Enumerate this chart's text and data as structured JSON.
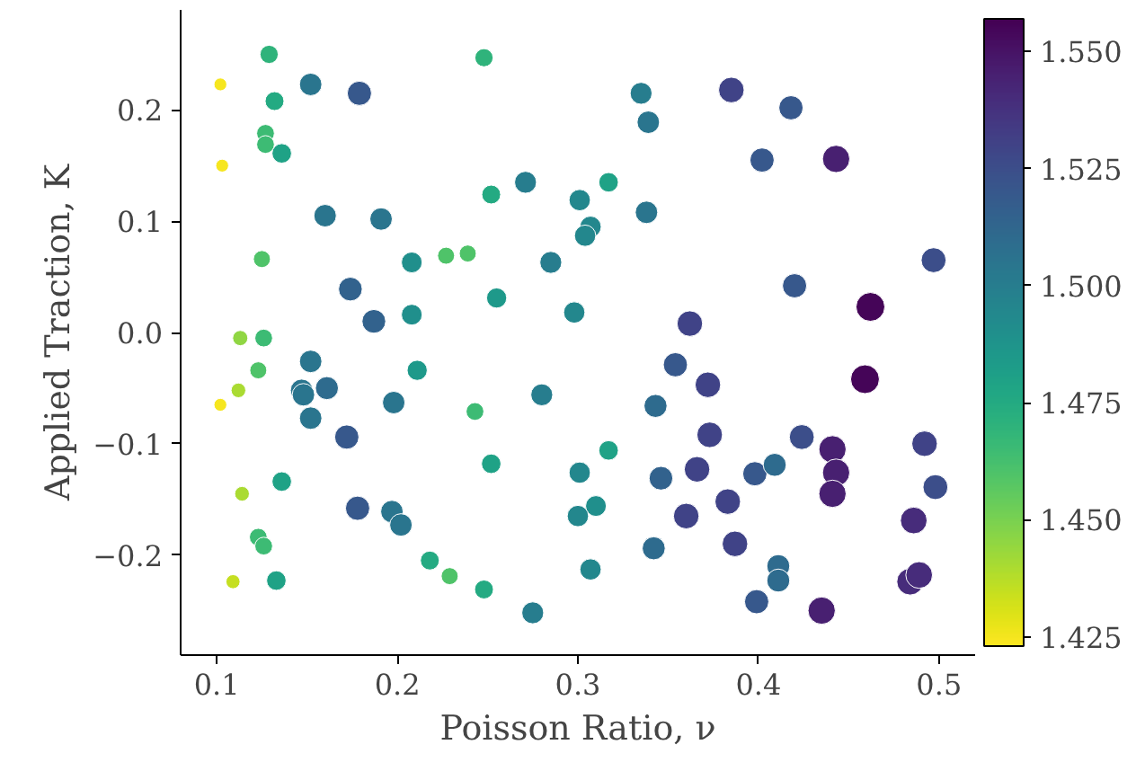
{
  "chart_data": {
    "type": "bubble",
    "sizes": [
      0.4,
      0.4,
      0.2,
      0.61,
      0.71,
      0.43,
      0.38,
      0.38,
      0.46,
      0.2,
      0.58,
      0.43,
      0.61,
      0.61,
      0.35,
      0.52,
      0.35,
      0.35,
      0.58,
      0.68,
      0.49,
      0.68,
      0.52,
      0.28,
      0.38,
      0.58,
      0.79,
      0.71,
      0.61,
      0.71,
      0.9,
      0.46,
      0.55,
      0.55,
      0.55,
      0.61,
      0.75,
      0.71,
      0.55,
      1.0,
      0.79,
      0.71,
      0.79,
      1.0,
      0.64,
      0.79,
      0.75,
      0.9,
      0.9,
      0.9,
      0.79,
      0.75,
      0.46,
      0.55,
      0.68,
      0.79,
      0.71,
      0.64,
      0.52,
      0.55,
      0.79,
      0.79,
      0.86,
      0.64,
      0.79,
      0.55,
      0.64,
      0.64,
      0.86,
      0.86,
      0.71,
      0.9,
      0.35,
      0.61,
      0.26,
      0.2,
      0.61,
      0.61,
      0.64,
      0.61,
      0.71,
      0.61,
      0.49,
      0.38,
      0.58,
      0.46,
      0.46,
      0.26,
      0.71,
      0.61,
      0.61,
      0.38,
      0.38,
      0.43,
      0.35,
      0.43,
      0.58,
      0.24,
      0.46
    ],
    "xlabel": "Poisson Ratio, ν",
    "ylabel": "Applied Traction, K",
    "marker": "circle",
    "grid": false,
    "xlim": [
      0.08,
      0.52
    ],
    "ylim": [
      -0.29,
      0.29
    ],
    "xticks": [
      0.1,
      0.2,
      0.3,
      0.4,
      0.5
    ],
    "yticks": [
      {
        "value": -0.2,
        "label": "−0.2"
      },
      {
        "value": -0.1,
        "label": "−0.1"
      },
      {
        "value": 0,
        "label": "0.0"
      },
      0.1,
      0.2
    ],
    "clim": [
      1.423,
      1.557
    ],
    "cticks": [
      1.425,
      {
        "value": 1.45,
        "label": "1.450"
      },
      1.475,
      {
        "value": 1.5,
        "label": "1.500"
      },
      1.525,
      {
        "value": 1.55,
        "label": "1.550"
      }
    ],
    "x": [
      0.129,
      0.248,
      0.102,
      0.152,
      0.179,
      0.132,
      0.127,
      0.127,
      0.136,
      0.103,
      0.271,
      0.252,
      0.16,
      0.191,
      0.125,
      0.208,
      0.227,
      0.239,
      0.285,
      0.174,
      0.255,
      0.187,
      0.208,
      0.113,
      0.126,
      0.335,
      0.385,
      0.418,
      0.339,
      0.402,
      0.443,
      0.317,
      0.301,
      0.307,
      0.304,
      0.338,
      0.497,
      0.42,
      0.298,
      0.462,
      0.362,
      0.354,
      0.372,
      0.459,
      0.343,
      0.373,
      0.424,
      0.441,
      0.443,
      0.441,
      0.492,
      0.498,
      0.317,
      0.301,
      0.346,
      0.366,
      0.398,
      0.409,
      0.31,
      0.3,
      0.383,
      0.36,
      0.486,
      0.342,
      0.387,
      0.307,
      0.411,
      0.411,
      0.484,
      0.489,
      0.399,
      0.435,
      0.123,
      0.152,
      0.112,
      0.102,
      0.147,
      0.148,
      0.161,
      0.152,
      0.172,
      0.198,
      0.211,
      0.243,
      0.28,
      0.252,
      0.136,
      0.114,
      0.178,
      0.197,
      0.202,
      0.123,
      0.126,
      0.218,
      0.229,
      0.248,
      0.275,
      0.109,
      0.133
    ],
    "values": [
      0.25,
      0.247,
      0.223,
      0.223,
      0.215,
      0.208,
      0.179,
      0.169,
      0.161,
      0.15,
      0.135,
      0.124,
      0.105,
      0.102,
      0.066,
      0.063,
      0.069,
      0.071,
      0.063,
      0.039,
      0.031,
      0.01,
      0.016,
      -0.005,
      -0.005,
      0.215,
      0.218,
      0.202,
      0.189,
      0.155,
      0.156,
      0.135,
      0.119,
      0.095,
      0.087,
      0.108,
      0.065,
      0.042,
      0.018,
      0.023,
      0.008,
      -0.029,
      -0.047,
      -0.042,
      -0.066,
      -0.092,
      -0.094,
      -0.105,
      -0.126,
      -0.145,
      -0.1,
      -0.139,
      -0.106,
      -0.126,
      -0.131,
      -0.123,
      -0.127,
      -0.119,
      -0.156,
      -0.165,
      -0.152,
      -0.165,
      -0.169,
      -0.194,
      -0.19,
      -0.213,
      -0.21,
      -0.223,
      -0.224,
      -0.218,
      -0.242,
      -0.25,
      -0.034,
      -0.026,
      -0.052,
      -0.065,
      -0.052,
      -0.056,
      -0.05,
      -0.077,
      -0.094,
      -0.063,
      -0.034,
      -0.071,
      -0.056,
      -0.118,
      -0.134,
      -0.145,
      -0.158,
      -0.161,
      -0.173,
      -0.184,
      -0.192,
      -0.205,
      -0.219,
      -0.231,
      -0.252,
      -0.224,
      -0.223
    ],
    "cvalues": [
      1.47,
      1.47,
      1.425,
      1.505,
      1.52,
      1.475,
      1.465,
      1.465,
      1.48,
      1.425,
      1.5,
      1.475,
      1.505,
      1.505,
      1.46,
      1.49,
      1.46,
      1.46,
      1.5,
      1.515,
      1.485,
      1.515,
      1.49,
      1.445,
      1.465,
      1.5,
      1.53,
      1.52,
      1.505,
      1.52,
      1.545,
      1.48,
      1.495,
      1.495,
      1.495,
      1.505,
      1.525,
      1.52,
      1.495,
      1.555,
      1.53,
      1.52,
      1.53,
      1.555,
      1.51,
      1.53,
      1.525,
      1.545,
      1.545,
      1.545,
      1.53,
      1.525,
      1.48,
      1.495,
      1.515,
      1.53,
      1.52,
      1.51,
      1.49,
      1.495,
      1.53,
      1.53,
      1.54,
      1.51,
      1.53,
      1.495,
      1.51,
      1.51,
      1.54,
      1.54,
      1.52,
      1.545,
      1.46,
      1.505,
      1.44,
      1.425,
      1.505,
      1.505,
      1.51,
      1.505,
      1.52,
      1.505,
      1.485,
      1.465,
      1.5,
      1.48,
      1.48,
      1.44,
      1.52,
      1.505,
      1.505,
      1.465,
      1.465,
      1.475,
      1.46,
      1.475,
      1.5,
      1.435,
      1.48
    ]
  }
}
